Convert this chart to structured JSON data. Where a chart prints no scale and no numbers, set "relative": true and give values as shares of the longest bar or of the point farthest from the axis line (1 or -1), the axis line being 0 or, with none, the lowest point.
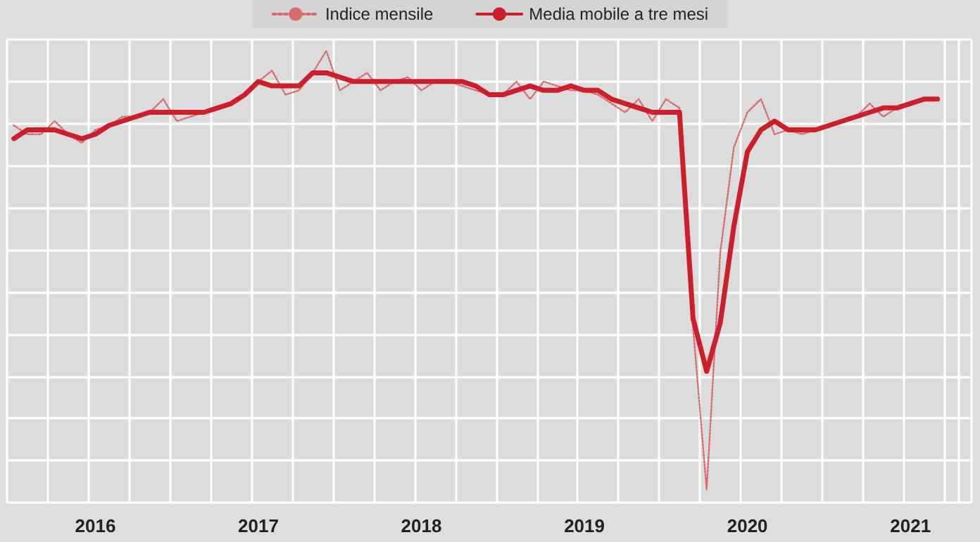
{
  "chart_data": {
    "type": "line",
    "relative": true,
    "grid": true,
    "legend": "top",
    "marker": "none",
    "categories": [
      null,
      null,
      null,
      null,
      null,
      null,
      "2016",
      null,
      null,
      null,
      null,
      null,
      null,
      null,
      null,
      null,
      null,
      null,
      "2017",
      null,
      null,
      null,
      null,
      null,
      null,
      null,
      null,
      null,
      null,
      null,
      "2018",
      null,
      null,
      null,
      null,
      null,
      null,
      null,
      null,
      null,
      null,
      null,
      "2019",
      null,
      null,
      null,
      null,
      null,
      null,
      null,
      null,
      null,
      null,
      null,
      "2020",
      null,
      null,
      null,
      null,
      null,
      null,
      null,
      null,
      null,
      null,
      null,
      "2021",
      null,
      null,
      null,
      null
    ],
    "series": [
      {
        "name": "Indice mensile",
        "color": "#d9696b",
        "line_style": "dotted",
        "values": [
          0.83,
          0.81,
          0.81,
          0.84,
          0.81,
          0.79,
          0.82,
          0.83,
          0.85,
          0.85,
          0.86,
          0.89,
          0.84,
          0.85,
          0.86,
          0.87,
          0.88,
          0.9,
          0.93,
          0.955,
          0.9,
          0.91,
          0.95,
          1.0,
          0.91,
          0.93,
          0.95,
          0.91,
          0.93,
          0.94,
          0.91,
          0.93,
          0.93,
          0.92,
          0.91,
          0.9,
          0.9,
          0.93,
          0.89,
          0.93,
          0.92,
          0.91,
          0.91,
          0.9,
          0.88,
          0.86,
          0.89,
          0.84,
          0.89,
          0.87,
          0.37,
          0.0,
          0.54,
          0.78,
          0.86,
          0.89,
          0.81,
          0.82,
          0.81,
          0.82,
          0.83,
          0.84,
          0.85,
          0.88,
          0.85,
          0.87,
          0.88,
          0.89,
          0.89,
          null,
          null
        ]
      },
      {
        "name": "Media mobile a tre mesi",
        "color": "#cc1f27",
        "line_style": "solid",
        "values": [
          0.8,
          0.82,
          0.82,
          0.82,
          0.81,
          0.8,
          0.81,
          0.83,
          0.84,
          0.85,
          0.86,
          0.86,
          0.86,
          0.86,
          0.86,
          0.87,
          0.88,
          0.9,
          0.93,
          0.92,
          0.92,
          0.92,
          0.95,
          0.95,
          0.94,
          0.93,
          0.93,
          0.93,
          0.93,
          0.93,
          0.93,
          0.93,
          0.93,
          0.93,
          0.92,
          0.9,
          0.9,
          0.91,
          0.92,
          0.91,
          0.91,
          0.92,
          0.91,
          0.91,
          0.89,
          0.88,
          0.87,
          0.86,
          0.86,
          0.86,
          0.39,
          0.27,
          0.38,
          0.6,
          0.77,
          0.82,
          0.84,
          0.82,
          0.82,
          0.82,
          0.83,
          0.84,
          0.85,
          0.86,
          0.87,
          0.87,
          0.88,
          0.89,
          0.89,
          null,
          null
        ]
      }
    ]
  }
}
